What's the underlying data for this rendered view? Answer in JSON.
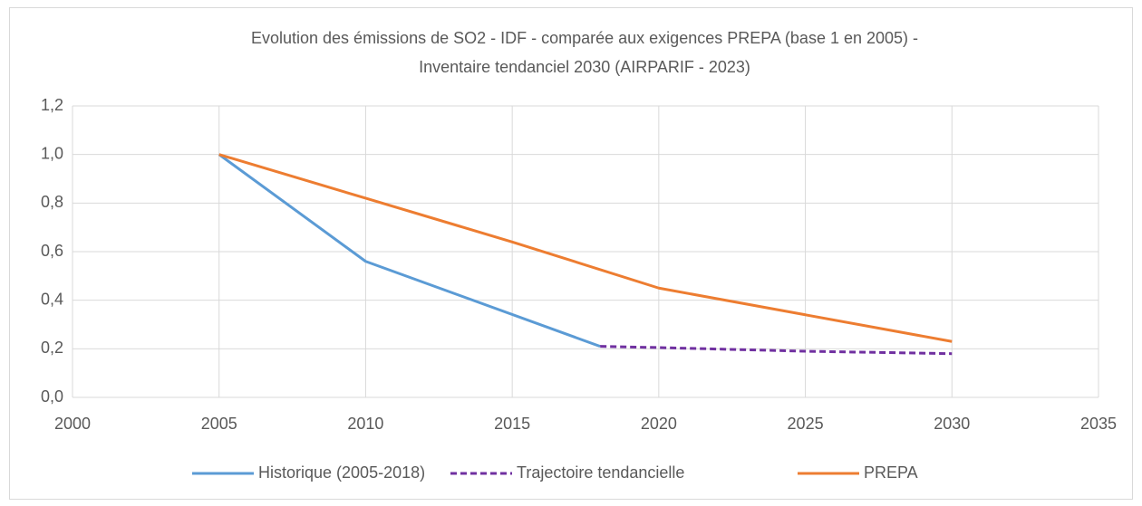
{
  "chart_data": {
    "type": "line",
    "title": "Evolution des émissions de SO2 - IDF -  comparée aux exigences PREPA (base 1 en 2005) -",
    "subtitle": "Inventaire tendanciel 2030 (AIRPARIF - 2023)",
    "series": [
      {
        "name": "Historique (2005-2018)",
        "color": "#5b9bd5",
        "dash": false,
        "x": [
          2005,
          2010,
          2018
        ],
        "values": [
          1.0,
          0.56,
          0.21
        ]
      },
      {
        "name": "Trajectoire tendancielle",
        "color": "#7030a0",
        "dash": true,
        "x": [
          2018,
          2020,
          2025,
          2030
        ],
        "values": [
          0.21,
          0.205,
          0.19,
          0.18
        ]
      },
      {
        "name": "PREPA",
        "color": "#ed7d31",
        "dash": false,
        "x": [
          2005,
          2010,
          2015,
          2020,
          2025,
          2030
        ],
        "values": [
          1.0,
          0.82,
          0.64,
          0.45,
          0.34,
          0.23
        ]
      }
    ],
    "xlim": [
      2000,
      2035
    ],
    "xticks": [
      2000,
      2005,
      2010,
      2015,
      2020,
      2025,
      2030,
      2035
    ],
    "ylim": [
      0,
      1.2
    ],
    "yticks": [
      {
        "value": 0,
        "label": "0,0"
      },
      {
        "value": 0.2,
        "label": "0,2"
      },
      {
        "value": 0.4,
        "label": "0,4"
      },
      {
        "value": 0.6,
        "label": "0,6"
      },
      {
        "value": 0.8,
        "label": "0,8"
      },
      {
        "value": 1.0,
        "label": "1,0"
      },
      {
        "value": 1.2,
        "label": "1,2"
      }
    ],
    "grid": true,
    "legend": "bottom"
  }
}
